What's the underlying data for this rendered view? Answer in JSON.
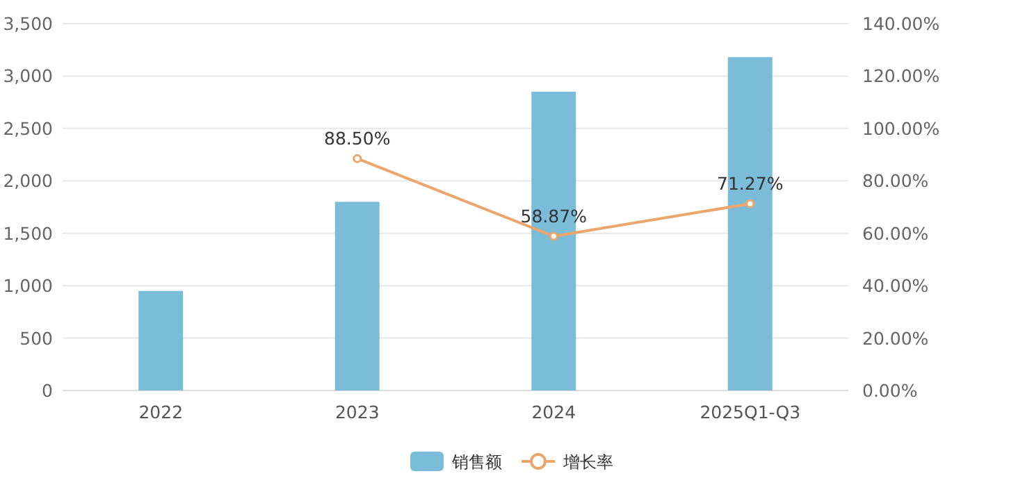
{
  "chart_data": {
    "type": "bar",
    "categories": [
      "2022",
      "2023",
      "2024",
      "2025Q1-Q3"
    ],
    "series": [
      {
        "name": "销售额",
        "color": "#7bbcd9",
        "values": [
          950,
          1800,
          2850,
          3180
        ]
      },
      {
        "name": "增长率",
        "type": "line",
        "axis": "y2",
        "color": "#eca66c",
        "marker": "circle",
        "values": [
          null,
          88.5,
          58.87,
          71.27
        ],
        "value_labels": [
          null,
          "88.50%",
          "58.87%",
          "71.27%"
        ]
      }
    ],
    "ylim": [
      0,
      3500
    ],
    "yticks": [
      {
        "value": 0,
        "label": "0"
      },
      {
        "value": 500,
        "label": "500"
      },
      {
        "value": 1000,
        "label": "1,000"
      },
      {
        "value": 1500,
        "label": "1,500"
      },
      {
        "value": 2000,
        "label": "2,000"
      },
      {
        "value": 2500,
        "label": "2,500"
      },
      {
        "value": 3000,
        "label": "3,000"
      },
      {
        "value": 3500,
        "label": "3,500"
      }
    ],
    "y2lim": [
      0,
      140
    ],
    "y2ticks": [
      {
        "value": 0,
        "label": "0.00%"
      },
      {
        "value": 20,
        "label": "20.00%"
      },
      {
        "value": 40,
        "label": "40.00%"
      },
      {
        "value": 60,
        "label": "60.00%"
      },
      {
        "value": 80,
        "label": "80.00%"
      },
      {
        "value": 100,
        "label": "100.00%"
      },
      {
        "value": 120,
        "label": "120.00%"
      },
      {
        "value": 140,
        "label": "140.00%"
      }
    ],
    "grid": "y",
    "legend": "bottom"
  }
}
